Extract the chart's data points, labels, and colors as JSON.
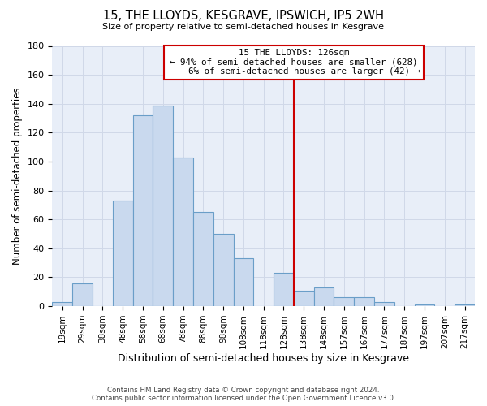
{
  "title": "15, THE LLOYDS, KESGRAVE, IPSWICH, IP5 2WH",
  "subtitle": "Size of property relative to semi-detached houses in Kesgrave",
  "xlabel": "Distribution of semi-detached houses by size in Kesgrave",
  "ylabel": "Number of semi-detached properties",
  "footer_line1": "Contains HM Land Registry data © Crown copyright and database right 2024.",
  "footer_line2": "Contains public sector information licensed under the Open Government Licence v3.0.",
  "bin_labels": [
    "19sqm",
    "29sqm",
    "38sqm",
    "48sqm",
    "58sqm",
    "68sqm",
    "78sqm",
    "88sqm",
    "98sqm",
    "108sqm",
    "118sqm",
    "128sqm",
    "138sqm",
    "148sqm",
    "157sqm",
    "167sqm",
    "177sqm",
    "187sqm",
    "197sqm",
    "207sqm",
    "217sqm"
  ],
  "bar_heights": [
    3,
    16,
    0,
    73,
    132,
    139,
    103,
    65,
    50,
    33,
    0,
    23,
    11,
    13,
    6,
    6,
    3,
    0,
    1,
    0,
    1
  ],
  "bar_color": "#c9d9ee",
  "bar_edge_color": "#6a9ec8",
  "property_label": "15 THE LLOYDS: 126sqm",
  "pct_smaller": 94,
  "n_smaller": 628,
  "pct_larger": 6,
  "n_larger": 42,
  "vline_color": "#cc0000",
  "vline_x_index": 11,
  "annotation_box_edge_color": "#cc0000",
  "ylim": [
    0,
    180
  ],
  "yticks": [
    0,
    20,
    40,
    60,
    80,
    100,
    120,
    140,
    160,
    180
  ],
  "background_color": "#ffffff",
  "grid_color": "#d0d8e8"
}
